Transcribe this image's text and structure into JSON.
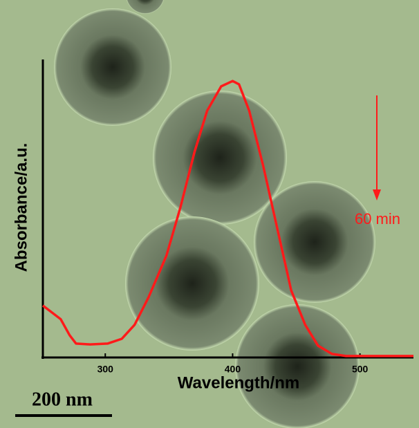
{
  "chart_data": {
    "type": "line",
    "x_label": "Wavelength/nm",
    "y_label": "Absorbance/a.u.",
    "annotation": "60 min",
    "scale_bar": "200 nm",
    "x": [
      251,
      258,
      265,
      272,
      277,
      288,
      302,
      313,
      323,
      334,
      348,
      359,
      370,
      380,
      391,
      400,
      405,
      413,
      424,
      435,
      446,
      457,
      467,
      478,
      489,
      542
    ],
    "values": [
      0.175,
      0.152,
      0.129,
      0.075,
      0.047,
      0.044,
      0.047,
      0.063,
      0.11,
      0.203,
      0.343,
      0.506,
      0.692,
      0.832,
      0.914,
      0.932,
      0.921,
      0.832,
      0.646,
      0.436,
      0.226,
      0.11,
      0.04,
      0.012,
      0.005,
      0.005
    ],
    "color": "#ff1a1a",
    "xlim": [
      251,
      542
    ],
    "xticks": [
      300,
      400,
      500
    ],
    "ylim": [
      0,
      1
    ]
  }
}
